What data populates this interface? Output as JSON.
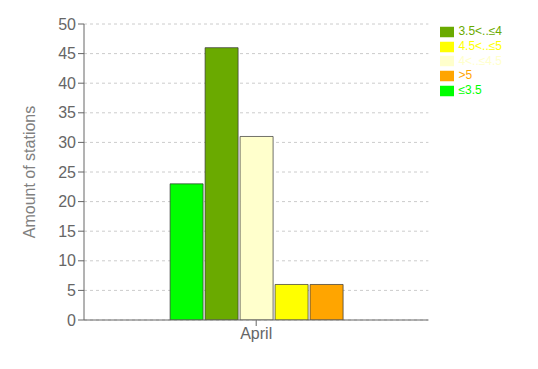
{
  "chart_data": {
    "type": "bar",
    "categories": [
      "April"
    ],
    "series": [
      {
        "name": "≤3.5",
        "color": "#00ff00",
        "values": [
          23
        ]
      },
      {
        "name": "3.5<..≤4",
        "color": "#6aaa00",
        "values": [
          46
        ]
      },
      {
        "name": "4<..≤4.5",
        "color": "#ffffcc",
        "values": [
          31
        ]
      },
      {
        "name": "4.5<..≤5",
        "color": "#ffff00",
        "values": [
          6
        ]
      },
      {
        "name": ">5",
        "color": "#ffa500",
        "values": [
          6
        ]
      }
    ],
    "y_label": "Amount of stations",
    "ylim": [
      0,
      50
    ],
    "yticks": [
      0,
      5,
      10,
      15,
      20,
      25,
      30,
      35,
      40,
      45,
      50
    ],
    "grid": true,
    "legend": "upper right"
  }
}
